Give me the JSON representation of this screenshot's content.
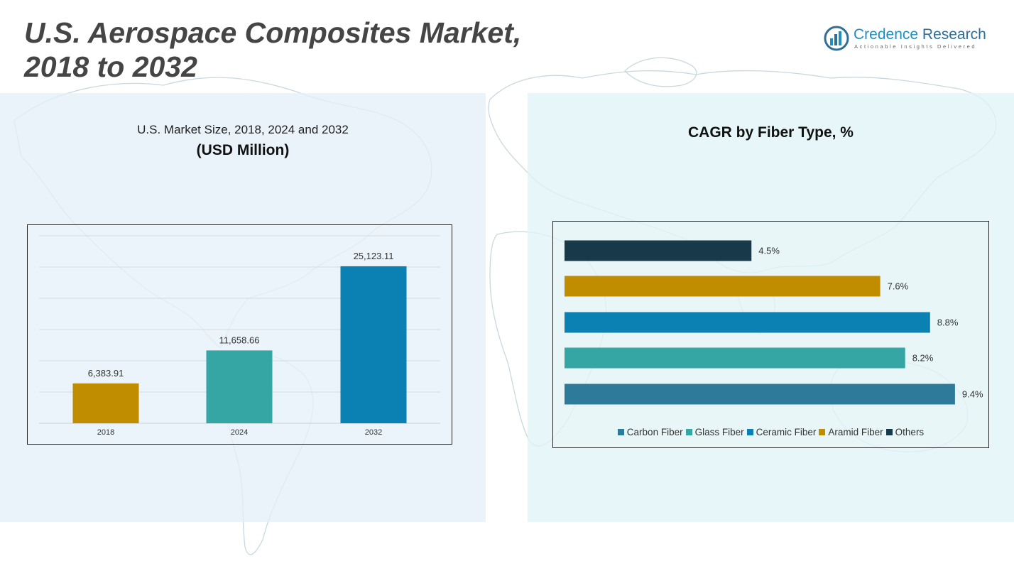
{
  "header": {
    "title_line1": "U.S. Aerospace Composites Market,",
    "title_line2": "2018 to 2032"
  },
  "brand": {
    "name_part1": "Credence",
    "name_part2": " Research",
    "tagline": "Actionable Insights Delivered",
    "icon": "bar-chart-logo-icon"
  },
  "colors": {
    "gold": "#c08d00",
    "teal": "#36a6a5",
    "blue": "#0a80b3",
    "steel": "#2e7a9a",
    "navy": "#173949"
  },
  "chart_data": [
    {
      "type": "bar",
      "title": "U.S. Market Size, 2018, 2024 and 2032",
      "subtitle": "(USD Million)",
      "categories": [
        "2018",
        "2024",
        "2032"
      ],
      "values": [
        6383.91,
        11658.66,
        25123.11
      ],
      "value_labels": [
        "6,383.91",
        "11,658.66",
        "25,123.11"
      ],
      "bar_colors": [
        "#c08d00",
        "#36a6a5",
        "#0a80b3"
      ],
      "ylim": [
        0,
        30000
      ],
      "gridlines": true,
      "legend": "none"
    },
    {
      "type": "bar",
      "orientation": "horizontal",
      "title": "CAGR by Fiber Type, %",
      "series": [
        {
          "name": "Carbon Fiber",
          "value": 9.4,
          "label": "9.4%",
          "color": "#2e7a9a"
        },
        {
          "name": "Glass Fiber",
          "value": 8.2,
          "label": "8.2%",
          "color": "#36a6a5"
        },
        {
          "name": "Ceramic Fiber",
          "value": 8.8,
          "label": "8.8%",
          "color": "#0a80b3"
        },
        {
          "name": "Aramid Fiber",
          "value": 7.6,
          "label": "7.6%",
          "color": "#c08d00"
        },
        {
          "name": "Others",
          "value": 4.5,
          "label": "4.5%",
          "color": "#173949"
        }
      ],
      "xlim": [
        0,
        10
      ],
      "gridlines": false,
      "legend": "bottom"
    }
  ]
}
